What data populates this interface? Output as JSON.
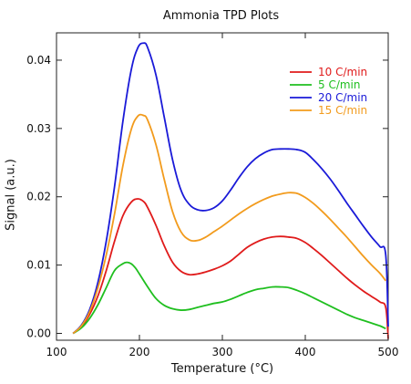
{
  "chart_data": {
    "type": "line",
    "title": "Ammonia TPD Plots",
    "xlabel": "Temperature (°C)",
    "ylabel": "Signal (a.u.)",
    "xlim": [
      100,
      500
    ],
    "ylim": [
      -0.001,
      0.044
    ],
    "xticks": [
      100,
      200,
      300,
      400,
      500
    ],
    "yticks": [
      0.0,
      0.01,
      0.02,
      0.03,
      0.04
    ],
    "ytick_labels": [
      "0.00",
      "0.01",
      "0.02",
      "0.03",
      "0.04"
    ],
    "grid": false,
    "legend_position": "top-right",
    "series": [
      {
        "name": "10 C/min",
        "color": "#e01b1b",
        "x": [
          120,
          130,
          140,
          150,
          160,
          170,
          180,
          190,
          198,
          205,
          210,
          220,
          230,
          240,
          250,
          260,
          270,
          280,
          290,
          300,
          310,
          320,
          330,
          340,
          350,
          360,
          370,
          380,
          390,
          400,
          410,
          420,
          430,
          440,
          450,
          460,
          470,
          480,
          490,
          497,
          500
        ],
        "y": [
          0.0,
          0.001,
          0.0028,
          0.0055,
          0.0092,
          0.0135,
          0.0172,
          0.0192,
          0.0197,
          0.0193,
          0.0184,
          0.0158,
          0.0128,
          0.0104,
          0.0091,
          0.0086,
          0.0087,
          0.009,
          0.0094,
          0.0099,
          0.0106,
          0.0116,
          0.0126,
          0.0133,
          0.0138,
          0.0141,
          0.0142,
          0.0141,
          0.0139,
          0.0133,
          0.0124,
          0.0114,
          0.0103,
          0.0092,
          0.0081,
          0.0071,
          0.0062,
          0.0054,
          0.0046,
          0.0038,
          -0.0008
        ]
      },
      {
        "name": "5 C/min",
        "color": "#1fbf1f",
        "x": [
          120,
          130,
          140,
          150,
          160,
          170,
          180,
          185,
          190,
          195,
          200,
          210,
          220,
          230,
          240,
          250,
          260,
          270,
          280,
          290,
          300,
          310,
          320,
          330,
          340,
          350,
          360,
          370,
          380,
          390,
          400,
          410,
          420,
          430,
          440,
          450,
          460,
          470,
          480,
          490,
          497
        ],
        "y": [
          0.0,
          0.0008,
          0.0022,
          0.0042,
          0.0067,
          0.0092,
          0.0102,
          0.0104,
          0.0102,
          0.0096,
          0.0087,
          0.0068,
          0.0051,
          0.0041,
          0.0036,
          0.0034,
          0.0035,
          0.0038,
          0.0041,
          0.0044,
          0.0046,
          0.005,
          0.0055,
          0.006,
          0.0064,
          0.0066,
          0.0068,
          0.0068,
          0.0067,
          0.0063,
          0.0058,
          0.0052,
          0.0046,
          0.004,
          0.0034,
          0.0028,
          0.0023,
          0.0019,
          0.0015,
          0.0011,
          0.0007
        ]
      },
      {
        "name": "20 C/min",
        "color": "#1a1ad8",
        "x": [
          120,
          130,
          140,
          150,
          160,
          170,
          180,
          190,
          198,
          205,
          210,
          220,
          230,
          240,
          250,
          260,
          270,
          280,
          290,
          300,
          310,
          320,
          330,
          340,
          350,
          360,
          370,
          380,
          390,
          400,
          410,
          420,
          430,
          440,
          450,
          460,
          470,
          480,
          490,
          497,
          500
        ],
        "y": [
          0.0,
          0.0012,
          0.0035,
          0.0075,
          0.0135,
          0.0215,
          0.031,
          0.0385,
          0.0418,
          0.0425,
          0.0418,
          0.0378,
          0.0316,
          0.0254,
          0.021,
          0.0189,
          0.0181,
          0.018,
          0.0184,
          0.0194,
          0.021,
          0.0228,
          0.0244,
          0.0256,
          0.0264,
          0.0269,
          0.027,
          0.027,
          0.0269,
          0.0265,
          0.0254,
          0.0241,
          0.0226,
          0.0209,
          0.0191,
          0.0174,
          0.0157,
          0.0141,
          0.0127,
          0.0115,
          0.001
        ]
      },
      {
        "name": "15 C/min",
        "color": "#f29b1d",
        "x": [
          120,
          130,
          140,
          150,
          160,
          170,
          180,
          190,
          198,
          205,
          210,
          220,
          230,
          240,
          250,
          260,
          270,
          280,
          290,
          300,
          310,
          320,
          330,
          340,
          350,
          360,
          370,
          380,
          390,
          400,
          410,
          420,
          430,
          440,
          450,
          460,
          470,
          480,
          490,
          497
        ],
        "y": [
          0.0,
          0.0011,
          0.0032,
          0.0067,
          0.0115,
          0.0175,
          0.0245,
          0.0298,
          0.0318,
          0.0319,
          0.0312,
          0.0276,
          0.0225,
          0.0178,
          0.0149,
          0.0137,
          0.0136,
          0.0141,
          0.0149,
          0.0157,
          0.0166,
          0.0175,
          0.0183,
          0.019,
          0.0196,
          0.0201,
          0.0204,
          0.0206,
          0.0205,
          0.0199,
          0.019,
          0.0179,
          0.0167,
          0.0154,
          0.0141,
          0.0127,
          0.0113,
          0.01,
          0.0088,
          0.0077
        ]
      }
    ]
  }
}
